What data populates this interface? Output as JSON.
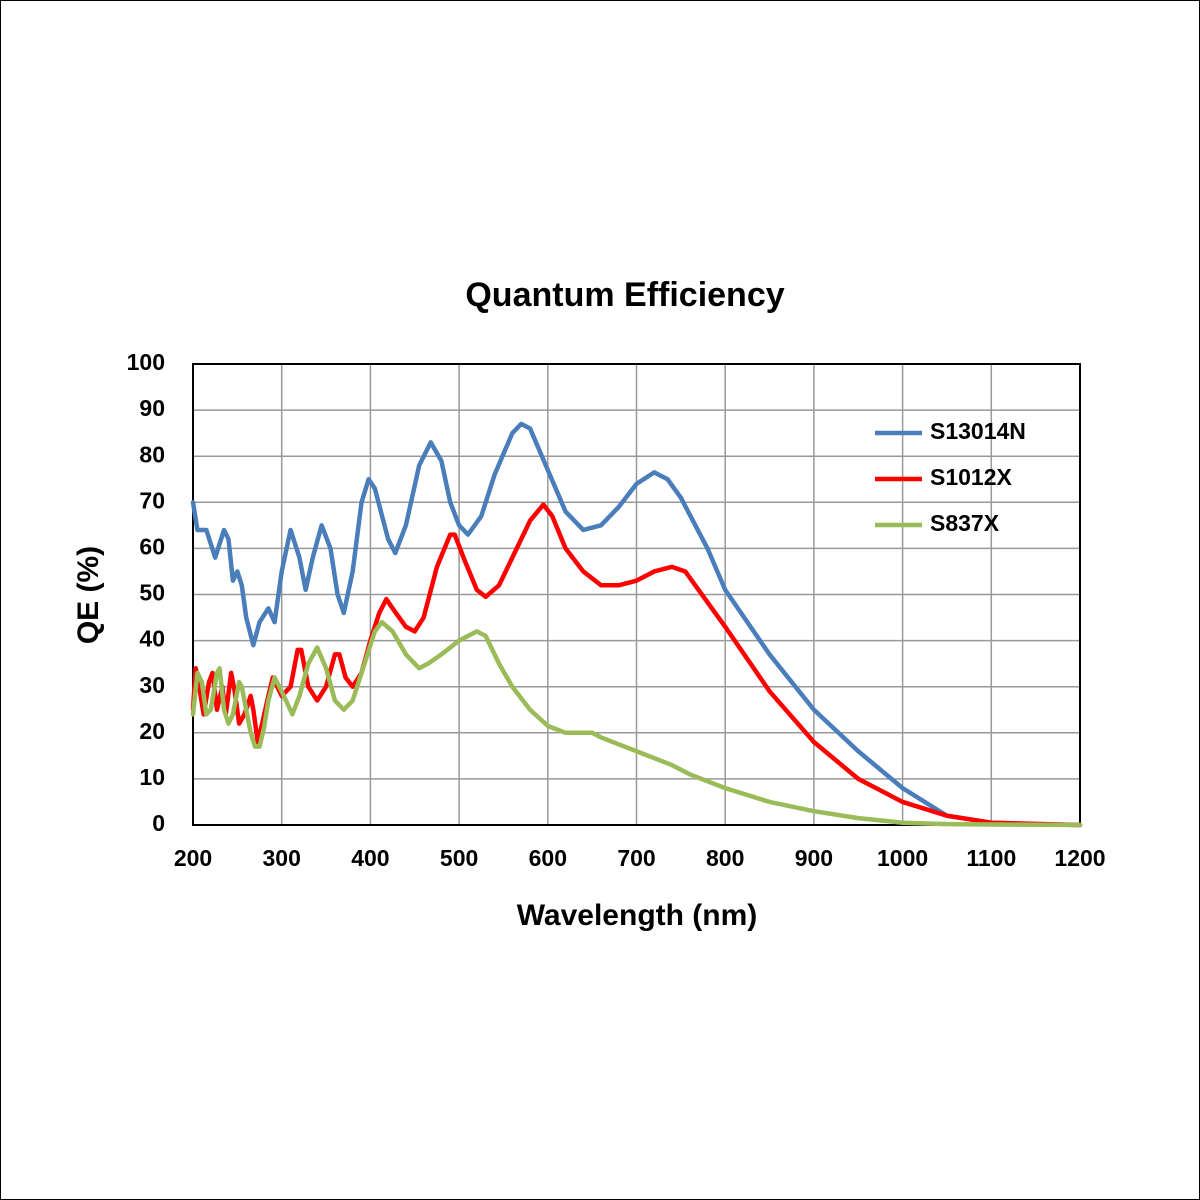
{
  "chart_data": {
    "type": "line",
    "title": "Quantum Efficiency",
    "x_label": "Wavelength (nm)",
    "y_label": "QE (%)",
    "xlim": [
      200,
      1200
    ],
    "xticks": [
      200,
      300,
      400,
      500,
      600,
      700,
      800,
      900,
      1000,
      1100,
      1200
    ],
    "ylim": [
      0,
      100
    ],
    "yticks": [
      0,
      10,
      20,
      30,
      40,
      50,
      60,
      70,
      80,
      90,
      100
    ],
    "grid": true,
    "legend": "upper right",
    "series": [
      {
        "name": "S13014N",
        "color": "#4a7ebb",
        "x": [
          200,
          205,
          215,
          225,
          235,
          240,
          245,
          250,
          255,
          260,
          268,
          275,
          285,
          292,
          300,
          310,
          320,
          327,
          335,
          345,
          355,
          363,
          370,
          380,
          390,
          398,
          405,
          420,
          428,
          440,
          455,
          468,
          480,
          490,
          500,
          510,
          525,
          540,
          560,
          570,
          580,
          600,
          620,
          640,
          660,
          680,
          700,
          720,
          735,
          750,
          780,
          800,
          850,
          900,
          950,
          1000,
          1050,
          1100,
          1150,
          1200
        ],
        "values": [
          70,
          64,
          64,
          58,
          64,
          62,
          53,
          55,
          52,
          45,
          39,
          44,
          47,
          44,
          55,
          64,
          58,
          51,
          58,
          65,
          60,
          50,
          46,
          55,
          70,
          75,
          73,
          62,
          59,
          65,
          78,
          83,
          79,
          70,
          65,
          63,
          67,
          76,
          85,
          87,
          86,
          77,
          68,
          64,
          65,
          69,
          74,
          76.5,
          75,
          71,
          60,
          51,
          37,
          25,
          16,
          8,
          2,
          0.5,
          0.2,
          0
        ]
      },
      {
        "name": "S1012X",
        "color": "#ff0000",
        "x": [
          200,
          203,
          207,
          212,
          218,
          222,
          227,
          233,
          237,
          243,
          247,
          252,
          258,
          265,
          268,
          273,
          278,
          285,
          290,
          300,
          310,
          318,
          322,
          330,
          340,
          350,
          360,
          365,
          372,
          380,
          390,
          400,
          410,
          418,
          425,
          440,
          450,
          460,
          475,
          490,
          495,
          505,
          520,
          530,
          545,
          560,
          580,
          595,
          605,
          620,
          640,
          660,
          680,
          700,
          720,
          740,
          755,
          770,
          800,
          850,
          900,
          950,
          1000,
          1050,
          1100,
          1200
        ],
        "values": [
          25,
          34,
          30,
          24,
          31,
          33,
          25,
          30,
          24,
          33,
          29,
          22,
          24,
          28,
          25,
          18,
          22,
          28,
          32,
          28,
          30,
          38,
          38,
          30,
          27,
          30,
          37,
          37,
          32,
          30,
          33,
          40,
          46,
          49,
          47,
          43,
          42,
          45,
          56,
          63,
          63,
          58,
          51,
          49.5,
          52,
          58,
          66,
          69.5,
          67,
          60,
          55,
          52,
          52,
          53,
          55,
          56,
          55,
          51,
          43,
          29,
          18,
          10,
          5,
          2,
          0.5,
          0
        ]
      },
      {
        "name": "S837X",
        "color": "#9bbb59",
        "x": [
          200,
          205,
          210,
          215,
          220,
          227,
          230,
          235,
          240,
          245,
          252,
          255,
          260,
          265,
          270,
          275,
          280,
          285,
          292,
          300,
          312,
          320,
          330,
          340,
          350,
          360,
          370,
          380,
          395,
          405,
          413,
          425,
          440,
          455,
          465,
          480,
          500,
          520,
          530,
          545,
          560,
          580,
          600,
          620,
          640,
          650,
          660,
          700,
          740,
          760,
          800,
          850,
          900,
          950,
          1000,
          1050,
          1100,
          1200
        ],
        "values": [
          24,
          33,
          31,
          24,
          25,
          33,
          34,
          25,
          22,
          24,
          31,
          30,
          25,
          20,
          17,
          17,
          21,
          27,
          32,
          29,
          24,
          28,
          35,
          38.5,
          34,
          27,
          25,
          27,
          36,
          42,
          44,
          42,
          37,
          34,
          35,
          37,
          40,
          42,
          41,
          35,
          30,
          25,
          21.5,
          20,
          20,
          20,
          19,
          16,
          13,
          11,
          8,
          5,
          3,
          1.5,
          0.5,
          0.2,
          0.1,
          0
        ]
      }
    ]
  }
}
